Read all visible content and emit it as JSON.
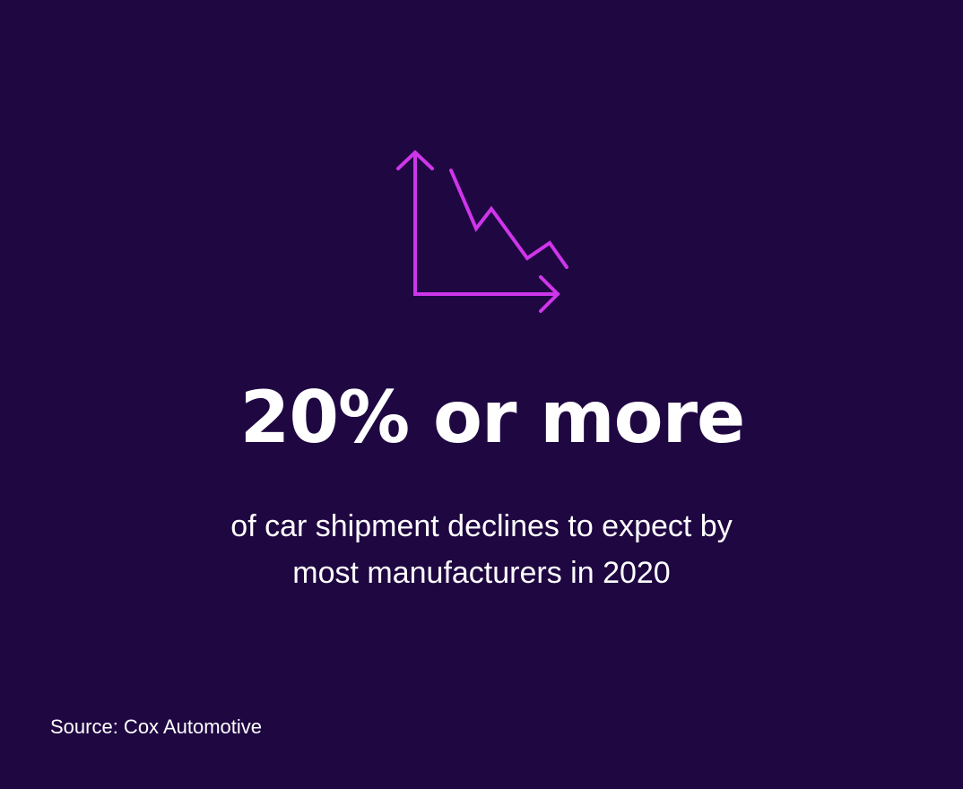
{
  "headline": "20% or more",
  "description": [
    "of car shipment declines to expect by",
    "most manufacturers in 2020"
  ],
  "source": "Source: Cox Automotive"
}
